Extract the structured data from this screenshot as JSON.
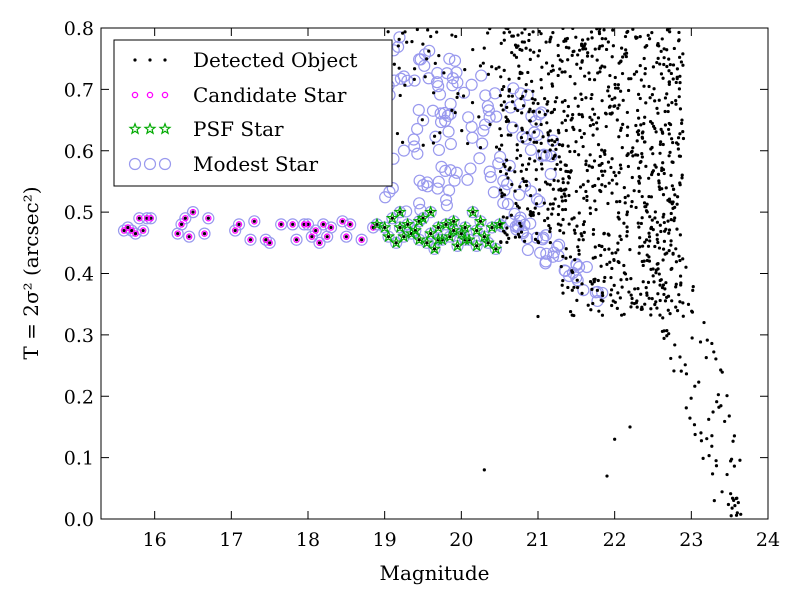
{
  "chart_data": {
    "type": "scatter",
    "title": "",
    "xlabel": "Magnitude",
    "ylabel": "T = 2σ² (arcsec²)",
    "xlim": [
      15.3,
      24
    ],
    "ylim": [
      0.0,
      0.8
    ],
    "x_ticks": [
      16,
      17,
      18,
      19,
      20,
      21,
      22,
      23,
      24
    ],
    "y_ticks": [
      0.0,
      0.1,
      0.2,
      0.3,
      0.4,
      0.5,
      0.6,
      0.7,
      0.8
    ],
    "x_tick_labels": [
      "16",
      "17",
      "18",
      "19",
      "20",
      "21",
      "22",
      "23",
      "24"
    ],
    "y_tick_labels": [
      "0.0",
      "0.1",
      "0.2",
      "0.3",
      "0.4",
      "0.5",
      "0.6",
      "0.7",
      "0.8"
    ],
    "grid": false,
    "legend_position": "top-left",
    "series": [
      {
        "name": "Detected Object",
        "marker": "dot",
        "color": "#000000",
        "density_regions": [
          {
            "x_range": [
              20.5,
              22.9
            ],
            "y_range": [
              0.33,
              0.8
            ],
            "approx_count": 1000
          },
          {
            "x_range": [
              22.3,
              23.7
            ],
            "y_range": [
              0.0,
              0.6
            ],
            "approx_count": 120
          },
          {
            "x_range": [
              19.0,
              20.6
            ],
            "y_range": [
              0.6,
              0.8
            ],
            "approx_count": 60
          }
        ],
        "outliers": [
          {
            "x": 20.3,
            "y": 0.08
          },
          {
            "x": 21.9,
            "y": 0.07
          },
          {
            "x": 22.0,
            "y": 0.13
          },
          {
            "x": 22.2,
            "y": 0.15
          },
          {
            "x": 21.0,
            "y": 0.33
          },
          {
            "x": 23.3,
            "y": 0.03
          },
          {
            "x": 23.6,
            "y": 0.01
          }
        ]
      },
      {
        "name": "Candidate Star",
        "marker": "small-circle",
        "color": "#ff00ff",
        "points": [
          {
            "x": 15.6,
            "y": 0.47
          },
          {
            "x": 15.65,
            "y": 0.475
          },
          {
            "x": 15.7,
            "y": 0.47
          },
          {
            "x": 15.8,
            "y": 0.49
          },
          {
            "x": 15.85,
            "y": 0.47
          },
          {
            "x": 15.9,
            "y": 0.49
          },
          {
            "x": 15.75,
            "y": 0.465
          },
          {
            "x": 15.95,
            "y": 0.49
          },
          {
            "x": 16.3,
            "y": 0.465
          },
          {
            "x": 16.35,
            "y": 0.48
          },
          {
            "x": 16.4,
            "y": 0.49
          },
          {
            "x": 16.45,
            "y": 0.46
          },
          {
            "x": 16.5,
            "y": 0.5
          },
          {
            "x": 16.65,
            "y": 0.465
          },
          {
            "x": 16.7,
            "y": 0.49
          },
          {
            "x": 17.05,
            "y": 0.47
          },
          {
            "x": 17.1,
            "y": 0.48
          },
          {
            "x": 17.25,
            "y": 0.455
          },
          {
            "x": 17.3,
            "y": 0.485
          },
          {
            "x": 17.45,
            "y": 0.455
          },
          {
            "x": 17.5,
            "y": 0.45
          },
          {
            "x": 17.65,
            "y": 0.48
          },
          {
            "x": 17.8,
            "y": 0.48
          },
          {
            "x": 17.85,
            "y": 0.455
          },
          {
            "x": 17.95,
            "y": 0.48
          },
          {
            "x": 18.0,
            "y": 0.48
          },
          {
            "x": 18.05,
            "y": 0.46
          },
          {
            "x": 18.1,
            "y": 0.47
          },
          {
            "x": 18.15,
            "y": 0.45
          },
          {
            "x": 18.2,
            "y": 0.48
          },
          {
            "x": 18.25,
            "y": 0.46
          },
          {
            "x": 18.3,
            "y": 0.475
          },
          {
            "x": 18.45,
            "y": 0.485
          },
          {
            "x": 18.5,
            "y": 0.46
          },
          {
            "x": 18.55,
            "y": 0.48
          },
          {
            "x": 18.7,
            "y": 0.455
          },
          {
            "x": 18.85,
            "y": 0.475
          }
        ]
      },
      {
        "name": "PSF Star",
        "marker": "star",
        "color": "#00aa00",
        "points": [
          {
            "x": 18.9,
            "y": 0.48
          },
          {
            "x": 19.0,
            "y": 0.475
          },
          {
            "x": 19.05,
            "y": 0.46
          },
          {
            "x": 19.1,
            "y": 0.49
          },
          {
            "x": 19.15,
            "y": 0.45
          },
          {
            "x": 19.2,
            "y": 0.475
          },
          {
            "x": 19.25,
            "y": 0.46
          },
          {
            "x": 19.3,
            "y": 0.48
          },
          {
            "x": 19.35,
            "y": 0.465
          },
          {
            "x": 19.4,
            "y": 0.47
          },
          {
            "x": 19.45,
            "y": 0.455
          },
          {
            "x": 19.5,
            "y": 0.49
          },
          {
            "x": 19.55,
            "y": 0.45
          },
          {
            "x": 19.6,
            "y": 0.5
          },
          {
            "x": 19.6,
            "y": 0.465
          },
          {
            "x": 19.65,
            "y": 0.44
          },
          {
            "x": 19.7,
            "y": 0.475
          },
          {
            "x": 19.75,
            "y": 0.455
          },
          {
            "x": 19.8,
            "y": 0.48
          },
          {
            "x": 19.85,
            "y": 0.46
          },
          {
            "x": 19.9,
            "y": 0.47
          },
          {
            "x": 19.95,
            "y": 0.445
          },
          {
            "x": 20.0,
            "y": 0.465
          },
          {
            "x": 20.05,
            "y": 0.475
          },
          {
            "x": 20.1,
            "y": 0.455
          },
          {
            "x": 20.15,
            "y": 0.5
          },
          {
            "x": 20.2,
            "y": 0.47
          },
          {
            "x": 20.25,
            "y": 0.485
          },
          {
            "x": 20.3,
            "y": 0.46
          },
          {
            "x": 20.35,
            "y": 0.45
          },
          {
            "x": 20.4,
            "y": 0.475
          },
          {
            "x": 20.45,
            "y": 0.44
          },
          {
            "x": 20.5,
            "y": 0.48
          },
          {
            "x": 19.2,
            "y": 0.5
          },
          {
            "x": 19.45,
            "y": 0.485
          },
          {
            "x": 19.7,
            "y": 0.455
          },
          {
            "x": 19.9,
            "y": 0.485
          },
          {
            "x": 20.05,
            "y": 0.455
          },
          {
            "x": 20.2,
            "y": 0.445
          }
        ]
      },
      {
        "name": "Modest Star",
        "marker": "open-circle",
        "color": "#9999ee",
        "description_regions": [
          {
            "x_range": [
              15.5,
              18.9
            ],
            "y_range": [
              0.44,
              0.5
            ],
            "note": "ring around candidate stars"
          },
          {
            "x_range": [
              18.8,
              20.6
            ],
            "y_range": [
              0.44,
              0.51
            ],
            "note": "ring around PSF stars"
          },
          {
            "x_range": [
              19.0,
              21.2
            ],
            "y_range": [
              0.5,
              0.8
            ],
            "note": "upper plume"
          },
          {
            "x_range": [
              20.5,
              21.9
            ],
            "y_range": [
              0.35,
              0.5
            ],
            "note": "faint tail"
          }
        ]
      }
    ]
  }
}
